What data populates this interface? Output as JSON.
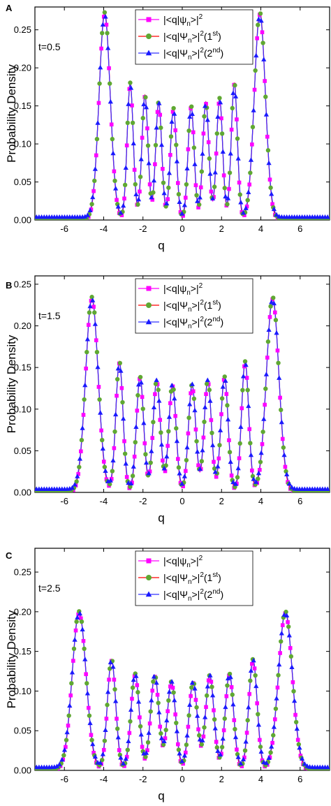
{
  "chart_data": [
    {
      "type": "line",
      "panel_label": "A",
      "annotation": "t=0.5",
      "xlabel": "q",
      "ylabel": "Probability Density",
      "xlim": [
        -7.5,
        7.5
      ],
      "ylim": [
        0,
        0.28
      ],
      "xticks": [
        "-6",
        "-4",
        "-2",
        "0",
        "2",
        "4",
        "6"
      ],
      "yticks": [
        "0.00",
        "0.05",
        "0.10",
        "0.15",
        "0.20",
        "0.25"
      ],
      "legend_position": "top-center",
      "series": [
        {
          "legend_main": "|<q|ψ",
          "legend_sub": "n",
          "legend_rest": ">|",
          "legend_sup": "2",
          "legend_tail": "",
          "legend_tail_sup": "",
          "legend_tail_end": "",
          "color": "#ff00ff",
          "marker": "square"
        },
        {
          "legend_main": "|<q|Ψ",
          "legend_sub": "n",
          "legend_rest": ">|",
          "legend_sup": "2",
          "legend_tail": "(1",
          "legend_tail_sup": "st",
          "legend_tail_end": ")",
          "color": "#ff0000",
          "marker_color": "#5fa832",
          "marker": "circle"
        },
        {
          "legend_main": "|<q|Ψ",
          "legend_sub": "n",
          "legend_rest": ">|",
          "legend_sup": "2",
          "legend_tail": "(2",
          "legend_tail_sup": "nd",
          "legend_tail_end": ")",
          "color": "#3333ff",
          "marker_color": "#1a1aff",
          "marker": "triangle"
        }
      ],
      "peaks": [
        {
          "q": -3.95,
          "y": 0.27,
          "w": 0.4
        },
        {
          "q": -2.65,
          "y": 0.178,
          "w": 0.22
        },
        {
          "q": -1.9,
          "y": 0.162,
          "w": 0.22
        },
        {
          "q": -1.2,
          "y": 0.153,
          "w": 0.22
        },
        {
          "q": -0.45,
          "y": 0.145,
          "w": 0.22
        },
        {
          "q": 0.45,
          "y": 0.148,
          "w": 0.22
        },
        {
          "q": 1.2,
          "y": 0.153,
          "w": 0.22
        },
        {
          "q": 1.9,
          "y": 0.158,
          "w": 0.22
        },
        {
          "q": 2.65,
          "y": 0.178,
          "w": 0.22
        },
        {
          "q": 3.95,
          "y": 0.27,
          "w": 0.4
        }
      ],
      "valley_floor": 0.0
    },
    {
      "type": "line",
      "panel_label": "B",
      "annotation": "t=1.5",
      "xlabel": "q",
      "ylabel": "Probability Density",
      "xlim": [
        -7.5,
        7.5
      ],
      "ylim": [
        0,
        0.26
      ],
      "xticks": [
        "-6",
        "-4",
        "-2",
        "0",
        "2",
        "4",
        "6"
      ],
      "yticks": [
        "0.00",
        "0.05",
        "0.10",
        "0.15",
        "0.20",
        "0.25"
      ],
      "legend_position": "top-center",
      "series": [
        {
          "legend_main": "|<q|ψ",
          "legend_sub": "n",
          "legend_rest": ">|",
          "legend_sup": "2",
          "legend_tail": "",
          "legend_tail_sup": "",
          "legend_tail_end": "",
          "color": "#ff00ff",
          "marker": "square"
        },
        {
          "legend_main": "|<q|Ψ",
          "legend_sub": "n",
          "legend_rest": ">|",
          "legend_sup": "2",
          "legend_tail": "(1",
          "legend_tail_sup": "st",
          "legend_tail_end": ")",
          "color": "#ff0000",
          "marker_color": "#5fa832",
          "marker": "circle"
        },
        {
          "legend_main": "|<q|Ψ",
          "legend_sub": "n",
          "legend_rest": ">|",
          "legend_sup": "2",
          "legend_tail": "(2",
          "legend_tail_sup": "nd",
          "legend_tail_end": ")",
          "color": "#3333ff",
          "marker_color": "#1a1aff",
          "marker": "triangle"
        }
      ],
      "peaks": [
        {
          "q": -4.6,
          "y": 0.232,
          "w": 0.45
        },
        {
          "q": -3.2,
          "y": 0.155,
          "w": 0.26
        },
        {
          "q": -2.15,
          "y": 0.137,
          "w": 0.26
        },
        {
          "q": -1.3,
          "y": 0.133,
          "w": 0.26
        },
        {
          "q": -0.5,
          "y": 0.128,
          "w": 0.26
        },
        {
          "q": 0.5,
          "y": 0.128,
          "w": 0.26
        },
        {
          "q": 1.3,
          "y": 0.133,
          "w": 0.26
        },
        {
          "q": 2.15,
          "y": 0.137,
          "w": 0.26
        },
        {
          "q": 3.2,
          "y": 0.155,
          "w": 0.26
        },
        {
          "q": 4.6,
          "y": 0.232,
          "w": 0.45
        }
      ],
      "valley_floor": 0.0
    },
    {
      "type": "line",
      "panel_label": "C",
      "annotation": "t=2.5",
      "xlabel": "q",
      "ylabel": "Probability Density",
      "xlim": [
        -7.5,
        7.5
      ],
      "ylim": [
        0,
        0.28
      ],
      "xticks": [
        "-6",
        "-4",
        "-2",
        "0",
        "2",
        "4",
        "6"
      ],
      "yticks": [
        "0.00",
        "0.05",
        "0.10",
        "0.15",
        "0.20",
        "0.25"
      ],
      "legend_position": "top-center",
      "series": [
        {
          "legend_main": "|<q|ψ",
          "legend_sub": "n",
          "legend_rest": ">|",
          "legend_sup": "2",
          "legend_tail": "",
          "legend_tail_sup": "",
          "legend_tail_end": "",
          "color": "#ff00ff",
          "marker": "square"
        },
        {
          "legend_main": "|<q|Ψ",
          "legend_sub": "n",
          "legend_rest": ">|",
          "legend_sup": "2",
          "legend_tail": "(1",
          "legend_tail_sup": "st",
          "legend_tail_end": ")",
          "color": "#ff0000",
          "marker_color": "#5fa832",
          "marker": "circle"
        },
        {
          "legend_main": "|<q|Ψ",
          "legend_sub": "n",
          "legend_rest": ">|",
          "legend_sup": "2",
          "legend_tail": "(2",
          "legend_tail_sup": "nd",
          "legend_tail_end": ")",
          "color": "#3333ff",
          "marker_color": "#1a1aff",
          "marker": "triangle"
        }
      ],
      "peaks": [
        {
          "q": -5.25,
          "y": 0.198,
          "w": 0.5
        },
        {
          "q": -3.6,
          "y": 0.138,
          "w": 0.3
        },
        {
          "q": -2.4,
          "y": 0.12,
          "w": 0.3
        },
        {
          "q": -1.4,
          "y": 0.118,
          "w": 0.3
        },
        {
          "q": -0.55,
          "y": 0.11,
          "w": 0.3
        },
        {
          "q": 0.55,
          "y": 0.11,
          "w": 0.3
        },
        {
          "q": 1.4,
          "y": 0.118,
          "w": 0.3
        },
        {
          "q": 2.4,
          "y": 0.12,
          "w": 0.3
        },
        {
          "q": 3.6,
          "y": 0.138,
          "w": 0.3
        },
        {
          "q": 5.25,
          "y": 0.198,
          "w": 0.5
        }
      ],
      "valley_floor": 0.0
    }
  ]
}
